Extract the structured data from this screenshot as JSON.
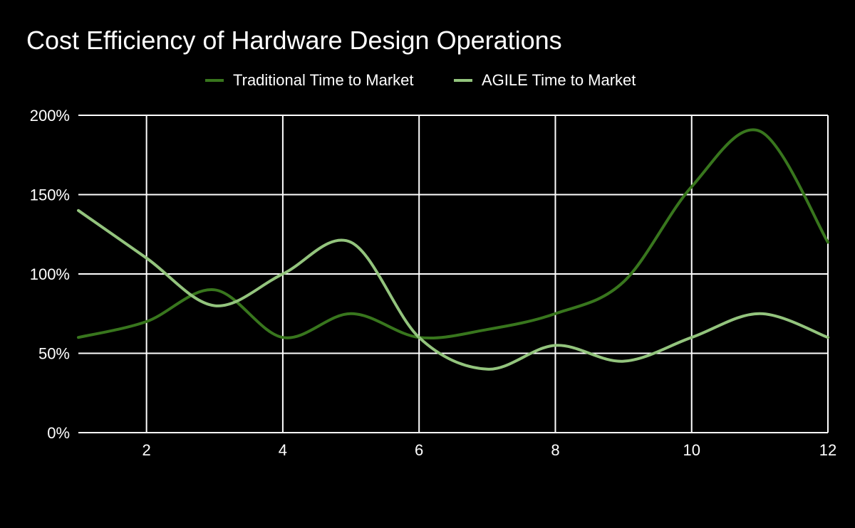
{
  "chart_data": {
    "type": "line",
    "title": "Cost Efficiency of Hardware Design Operations",
    "xlabel": "",
    "ylabel": "",
    "x": [
      1,
      2,
      3,
      4,
      5,
      6,
      7,
      8,
      9,
      10,
      11,
      12
    ],
    "xlim": [
      1,
      12
    ],
    "ylim": [
      0,
      2
    ],
    "x_ticks": [
      2,
      4,
      6,
      8,
      10,
      12
    ],
    "x_tick_labels": [
      "2",
      "4",
      "6",
      "8",
      "10",
      "12"
    ],
    "y_ticks": [
      0,
      0.5,
      1,
      1.5,
      2
    ],
    "y_tick_labels": [
      "0%",
      "50%",
      "100%",
      "150%",
      "200%"
    ],
    "grid": true,
    "legend_position": "top",
    "series": [
      {
        "name": "Traditional Time to Market",
        "color": "#38761d",
        "values": [
          0.6,
          0.7,
          0.9,
          0.6,
          0.75,
          0.6,
          0.65,
          0.75,
          0.95,
          1.55,
          1.9,
          1.2
        ]
      },
      {
        "name": "AGILE Time to Market",
        "color": "#93c47d",
        "values": [
          1.4,
          1.1,
          0.8,
          1.0,
          1.2,
          0.6,
          0.4,
          0.55,
          0.45,
          0.6,
          0.75,
          0.6
        ]
      }
    ]
  }
}
